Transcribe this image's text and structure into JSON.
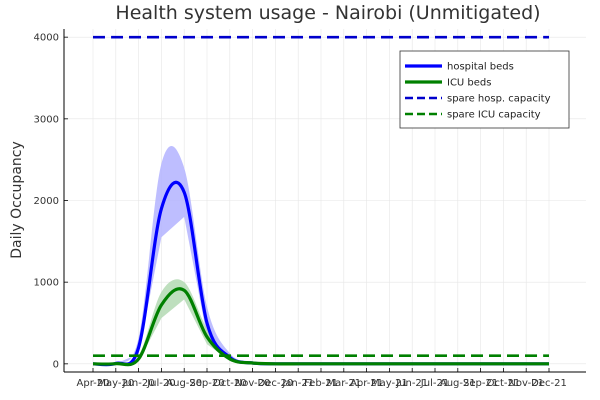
{
  "chart_data": {
    "type": "line",
    "title": "Health system usage - Nairobi (Unmitigated)",
    "xlabel": "",
    "ylabel": "Daily Occupancy",
    "categories": [
      "Apr-20",
      "May-20",
      "Jun-20",
      "Jul-20",
      "Aug-20",
      "Sep-20",
      "Oct-20",
      "Nov-20",
      "Dec-20",
      "Jan-21",
      "Feb-21",
      "Mar-21",
      "Apr-21",
      "May-21",
      "Jun-21",
      "Jul-21",
      "Aug-21",
      "Sep-21",
      "Oct-21",
      "Nov-21",
      "Dec-21"
    ],
    "ylim": [
      -100,
      4100
    ],
    "yticks": [
      0,
      1000,
      2000,
      3000,
      4000
    ],
    "ytick_labels": [
      "0",
      "1000",
      "2000",
      "3000",
      "4000"
    ],
    "grid": true,
    "legend_position": "top-right",
    "series": [
      {
        "name": "hospital beds",
        "style": "solid",
        "color": "#0000ff",
        "band_color": "#b3b3ff",
        "values": [
          0,
          5,
          200,
          1900,
          2100,
          500,
          80,
          10,
          0,
          0,
          0,
          0,
          0,
          0,
          0,
          0,
          0,
          0,
          0,
          0,
          0
        ],
        "upper": [
          0,
          8,
          320,
          2450,
          2400,
          700,
          130,
          20,
          0,
          0,
          0,
          0,
          0,
          0,
          0,
          0,
          0,
          0,
          0,
          0,
          0
        ],
        "lower": [
          0,
          3,
          120,
          1550,
          1800,
          340,
          50,
          5,
          0,
          0,
          0,
          0,
          0,
          0,
          0,
          0,
          0,
          0,
          0,
          0,
          0
        ]
      },
      {
        "name": "ICU beds",
        "style": "solid",
        "color": "#008000",
        "band_color": "#b3d9b3",
        "values": [
          0,
          2,
          60,
          720,
          900,
          330,
          60,
          10,
          0,
          0,
          0,
          0,
          0,
          0,
          0,
          0,
          0,
          0,
          0,
          0,
          0
        ],
        "upper": [
          0,
          4,
          100,
          880,
          1000,
          430,
          90,
          15,
          0,
          0,
          0,
          0,
          0,
          0,
          0,
          0,
          0,
          0,
          0,
          0,
          0
        ],
        "lower": [
          0,
          1,
          30,
          560,
          790,
          240,
          40,
          5,
          0,
          0,
          0,
          0,
          0,
          0,
          0,
          0,
          0,
          0,
          0,
          0,
          0
        ]
      },
      {
        "name": "spare hosp. capacity",
        "style": "dashed",
        "color": "#0000cc",
        "values": [
          4000,
          4000,
          4000,
          4000,
          4000,
          4000,
          4000,
          4000,
          4000,
          4000,
          4000,
          4000,
          4000,
          4000,
          4000,
          4000,
          4000,
          4000,
          4000,
          4000,
          4000
        ]
      },
      {
        "name": "spare ICU capacity",
        "style": "dashed",
        "color": "#008000",
        "values": [
          100,
          100,
          100,
          100,
          100,
          100,
          100,
          100,
          100,
          100,
          100,
          100,
          100,
          100,
          100,
          100,
          100,
          100,
          100,
          100,
          100
        ]
      }
    ]
  }
}
